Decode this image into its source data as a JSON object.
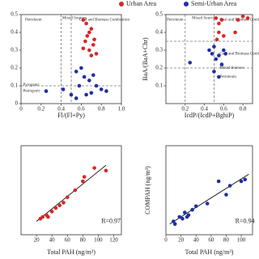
{
  "chart_data": [
    {
      "type": "scatter",
      "xlabel": "Fl/(Fl+Py)",
      "xlim": [
        0,
        1
      ],
      "ylim": [
        0,
        0.5
      ],
      "xticks": [
        0,
        0.2,
        0.4,
        0.6,
        0.8,
        {
          "value": 1,
          "label": "1.0"
        }
      ],
      "yticks": [
        0,
        0.1,
        0.2,
        0.3,
        0.4,
        0.5
      ],
      "vlines": [
        0.4,
        0.5
      ],
      "hlines": [
        0.1
      ],
      "annotations": [
        "Petroleum",
        "Mixed Sources",
        "Coal and Biomass Combustion",
        "Pyrogenic",
        "Petrogenic"
      ],
      "series": [
        {
          "name": "Urban Area",
          "color": "#d62728",
          "x": [
            0.62,
            0.65,
            0.68,
            0.7,
            0.66,
            0.64,
            0.72,
            0.68,
            0.75,
            0.7,
            0.62,
            0.73
          ],
          "values": [
            0.47,
            0.45,
            0.4,
            0.42,
            0.38,
            0.35,
            0.33,
            0.3,
            0.28,
            0.27,
            0.31,
            0.36
          ]
        },
        {
          "name": "Semi-Urban Area",
          "color": "#1f2f9f",
          "x": [
            0.25,
            0.42,
            0.55,
            0.6,
            0.63,
            0.58,
            0.65,
            0.7,
            0.75,
            0.8,
            0.85,
            0.55,
            0.5,
            0.72,
            0.68
          ],
          "values": [
            0.07,
            0.08,
            0.18,
            0.2,
            0.15,
            0.1,
            0.05,
            0.06,
            0.1,
            0.08,
            0.07,
            0.03,
            0.05,
            0.16,
            0.13
          ]
        }
      ]
    },
    {
      "type": "scatter",
      "xlabel": "IcdP/(IcdP+BghiP)",
      "ylabel": "BaA/(BaA+Chr)",
      "xlim": [
        0,
        0.9
      ],
      "ylim": [
        0,
        0.5
      ],
      "xticks": [
        0.2,
        0.4,
        0.6,
        0.8
      ],
      "yticks": [
        0.1,
        0.2,
        0.3,
        0.4,
        0.5
      ],
      "vlines": [
        0.2,
        0.5
      ],
      "hlines": [
        0.2,
        0.35
      ],
      "annotations": [
        "Petroleum",
        "Mixed Sources",
        "Coal and Biomass Combustion",
        "Coal and Biomass Combustion",
        "Mixed Sources",
        "Petroleum"
      ],
      "series": [
        {
          "name": "Urban Area",
          "color": "#d62728",
          "x": [
            0.52,
            0.55,
            0.58,
            0.8,
            0.85,
            0.75,
            0.55,
            0.6,
            0.72,
            0.53
          ],
          "values": [
            0.48,
            0.45,
            0.47,
            0.49,
            0.48,
            0.47,
            0.4,
            0.38,
            0.4,
            0.36
          ]
        },
        {
          "name": "Semi-Urban Area",
          "color": "#1f2f9f",
          "x": [
            0.45,
            0.48,
            0.5,
            0.55,
            0.52,
            0.58,
            0.62,
            0.5,
            0.55,
            0.6,
            0.25
          ],
          "values": [
            0.3,
            0.28,
            0.32,
            0.27,
            0.25,
            0.22,
            0.28,
            0.18,
            0.15,
            0.3,
            0.23
          ]
        }
      ]
    },
    {
      "type": "scatter",
      "xlabel": "Total PAH (ng/m³)",
      "xlim": [
        0,
        130
      ],
      "ylim": [
        0,
        1
      ],
      "xticks": [
        20,
        40,
        60,
        80,
        100,
        120
      ],
      "annotations": [
        "R=0.97"
      ],
      "fit": {
        "x": [
          20,
          110
        ],
        "y": [
          0.15,
          0.78
        ]
      },
      "series": [
        {
          "color": "#d62728",
          "x": [
            25,
            28,
            33,
            35,
            40,
            45,
            50,
            55,
            60,
            70,
            80,
            82,
            95,
            110
          ],
          "values": [
            0.18,
            0.2,
            0.22,
            0.2,
            0.26,
            0.3,
            0.33,
            0.36,
            0.42,
            0.5,
            0.6,
            0.65,
            0.75,
            0.72
          ]
        }
      ]
    },
    {
      "type": "scatter",
      "xlabel": "Total PAH (ng/m³)",
      "ylabel": "COMPAH (ng/m³)",
      "xlim": [
        0,
        115
      ],
      "ylim": [
        0,
        1
      ],
      "xticks": [
        0,
        20,
        40,
        60,
        80,
        100
      ],
      "annotations": [
        "R=0.94"
      ],
      "fit": {
        "x": [
          5,
          110
        ],
        "y": [
          0.12,
          0.68
        ]
      },
      "series": [
        {
          "color": "#1f2f9f",
          "x": [
            10,
            12,
            18,
            22,
            25,
            28,
            30,
            35,
            40,
            55,
            70,
            80,
            85,
            100,
            105
          ],
          "values": [
            0.15,
            0.12,
            0.2,
            0.18,
            0.25,
            0.2,
            0.22,
            0.28,
            0.32,
            0.35,
            0.6,
            0.45,
            0.55,
            0.6,
            0.62
          ]
        }
      ]
    }
  ]
}
